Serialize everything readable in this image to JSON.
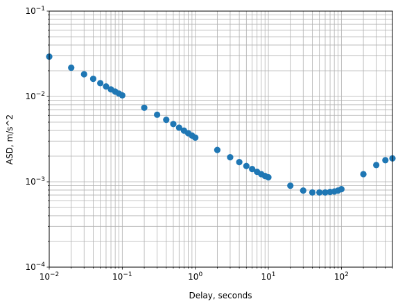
{
  "chart_data": {
    "type": "scatter",
    "xlabel": "Delay, seconds",
    "ylabel": "ASD, m/s^2",
    "xscale": "log",
    "yscale": "log",
    "xlim": [
      0.01,
      500
    ],
    "ylim": [
      0.0001,
      0.1
    ],
    "grid": "major and minor",
    "marker_color": "#1f77b4",
    "x_ticks": [
      {
        "value": 0.01,
        "base": "10",
        "exp": "−2"
      },
      {
        "value": 0.1,
        "base": "10",
        "exp": "−1"
      },
      {
        "value": 1,
        "base": "10",
        "exp": "0"
      },
      {
        "value": 10,
        "base": "10",
        "exp": "1"
      },
      {
        "value": 100,
        "base": "10",
        "exp": "2"
      }
    ],
    "y_ticks": [
      {
        "value": 0.0001,
        "base": "10",
        "exp": "−4"
      },
      {
        "value": 0.001,
        "base": "10",
        "exp": "−3"
      },
      {
        "value": 0.01,
        "base": "10",
        "exp": "−2"
      },
      {
        "value": 0.1,
        "base": "10",
        "exp": "−1"
      }
    ],
    "series": [
      {
        "x": [
          0.01,
          0.02,
          0.03,
          0.04,
          0.05,
          0.06,
          0.07,
          0.08,
          0.09,
          0.1,
          0.2,
          0.3,
          0.4,
          0.5,
          0.6,
          0.7,
          0.8,
          0.9,
          1,
          2,
          3,
          4,
          5,
          6,
          7,
          8,
          9,
          10,
          20,
          30,
          40,
          50,
          60,
          70,
          80,
          90,
          100,
          200,
          300,
          400,
          500
        ],
        "y": [
          0.0293,
          0.0217,
          0.0182,
          0.0161,
          0.0143,
          0.0131,
          0.0121,
          0.0114,
          0.0108,
          0.0103,
          0.00737,
          0.00611,
          0.00533,
          0.00475,
          0.00431,
          0.00398,
          0.00371,
          0.00348,
          0.00329,
          0.00236,
          0.00194,
          0.0017,
          0.00153,
          0.00141,
          0.00131,
          0.00123,
          0.00117,
          0.00113,
          0.0009,
          0.00079,
          0.00075,
          0.00075,
          0.00075,
          0.00076,
          0.00077,
          0.00079,
          0.00082,
          0.00123,
          0.00157,
          0.00179,
          0.00188
        ]
      }
    ]
  }
}
